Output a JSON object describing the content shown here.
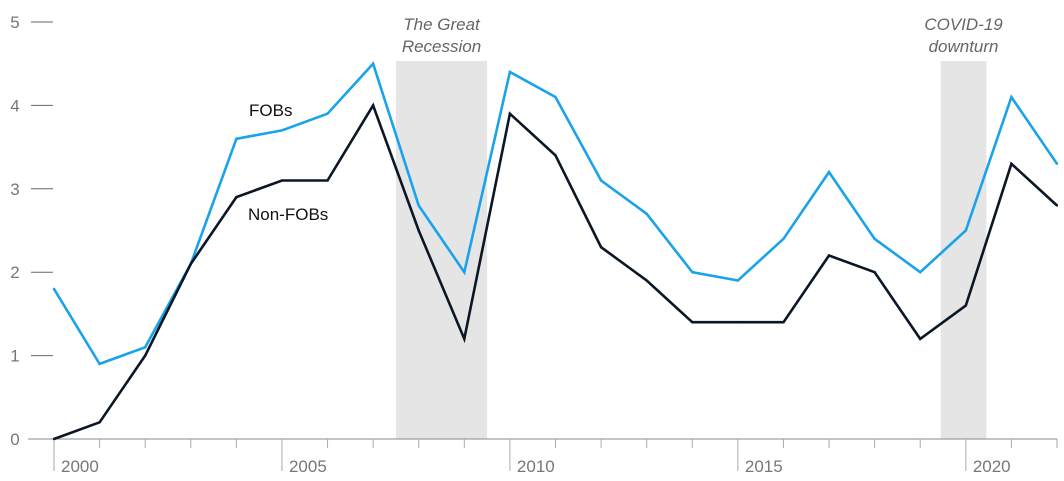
{
  "chart_data": {
    "type": "line",
    "title": "",
    "xlabel": "",
    "ylabel": "",
    "ylim": [
      0,
      5
    ],
    "xlim": [
      2000,
      2022
    ],
    "grid": false,
    "y_ticks": [
      "0",
      "1",
      "2",
      "3",
      "4",
      "5"
    ],
    "x_tick_labels": [
      {
        "year": 2000,
        "label": "2000"
      },
      {
        "year": 2005,
        "label": "2005"
      },
      {
        "year": 2010,
        "label": "2010"
      },
      {
        "year": 2015,
        "label": "2015"
      },
      {
        "year": 2020,
        "label": "2020"
      }
    ],
    "x": [
      2000,
      2001,
      2002,
      2003,
      2004,
      2005,
      2006,
      2007,
      2008,
      2009,
      2010,
      2011,
      2012,
      2013,
      2014,
      2015,
      2016,
      2017,
      2018,
      2019,
      2020,
      2021,
      2022
    ],
    "series": [
      {
        "name": "FOBs",
        "color": "#1aa3ea",
        "values": [
          1.8,
          0.9,
          1.1,
          2.1,
          3.6,
          3.7,
          3.9,
          4.5,
          2.8,
          2.0,
          4.4,
          4.1,
          3.1,
          2.7,
          2.0,
          1.9,
          2.4,
          3.2,
          2.4,
          2.0,
          2.5,
          4.1,
          3.3
        ]
      },
      {
        "name": "Non-FOBs",
        "color": "#0b1726",
        "values": [
          0.0,
          0.2,
          1.0,
          2.1,
          2.9,
          3.1,
          3.1,
          4.0,
          2.5,
          1.2,
          3.9,
          3.4,
          2.3,
          1.9,
          1.4,
          1.4,
          1.4,
          2.2,
          2.0,
          1.2,
          1.6,
          3.3,
          2.8
        ]
      }
    ],
    "shaded_periods": [
      {
        "label_line1": "The Great",
        "label_line2": "Recession",
        "start": 2007.5,
        "end": 2009.5,
        "color": "#e5e5e5"
      },
      {
        "label_line1": "COVID-19",
        "label_line2": "downturn",
        "start": 2019.45,
        "end": 2020.45,
        "color": "#e5e5e5"
      }
    ]
  }
}
